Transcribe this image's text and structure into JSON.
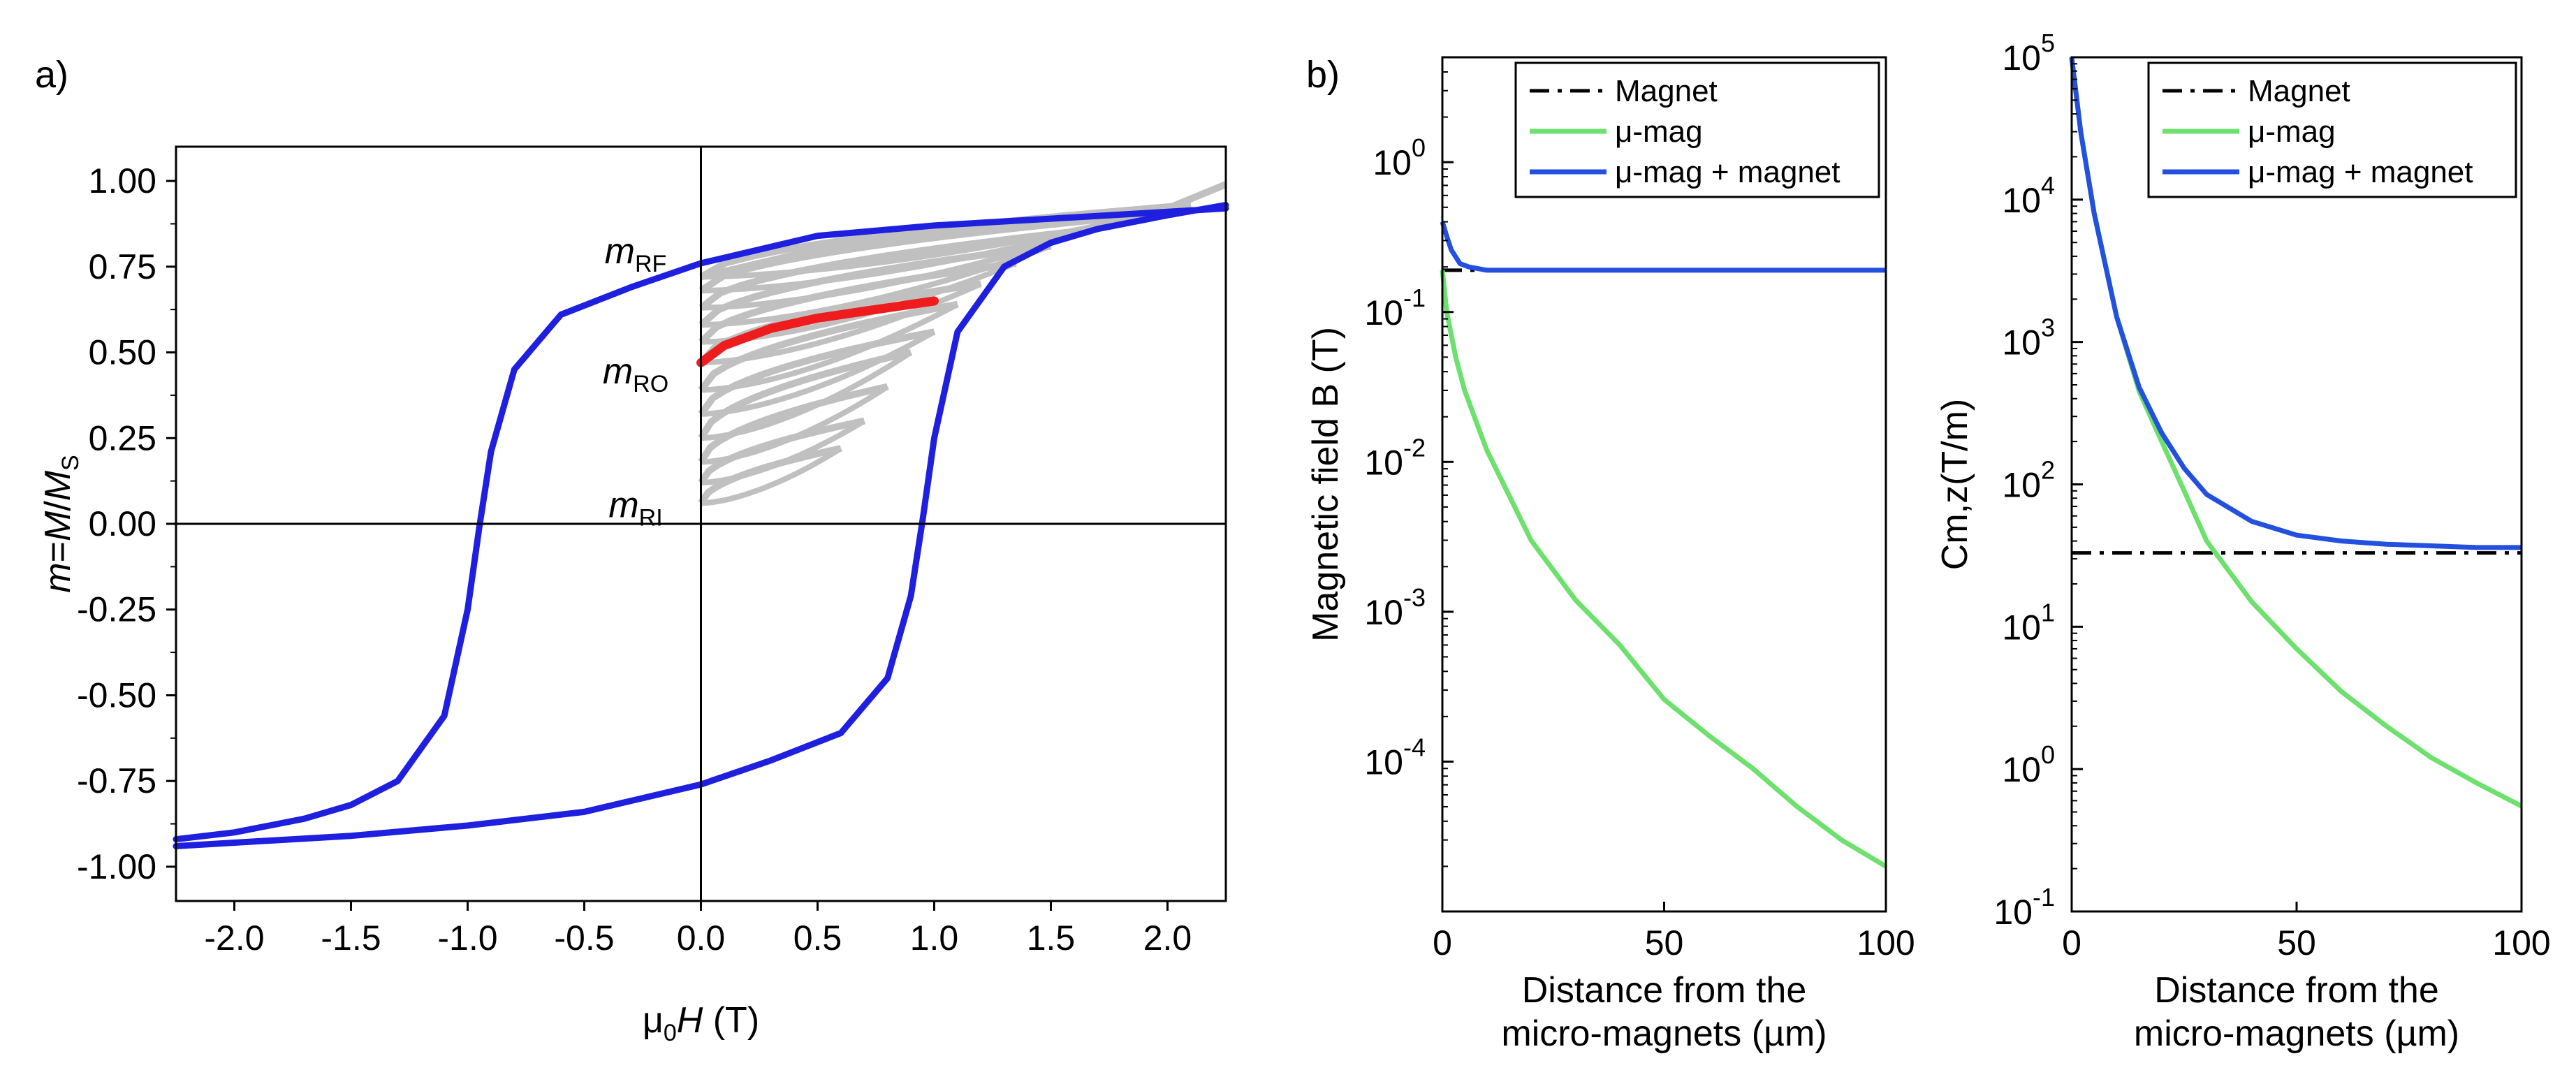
{
  "figure": {
    "panel_a_label": "a)",
    "panel_b_label": "b)"
  },
  "chart_data": [
    {
      "id": "a",
      "type": "line",
      "title": "",
      "xlabel": "μ₀H (T)",
      "xlabel_parts": {
        "mu": "μ",
        "sub": "0",
        "var": "H",
        "unit": " (T)"
      },
      "ylabel": "m=M/Ms",
      "ylabel_parts": {
        "m": "m",
        "eq": "=",
        "M": "M",
        "slash": "/",
        "Ms": "M",
        "sub": "S"
      },
      "xlim": [
        -2.25,
        2.25
      ],
      "ylim": [
        -1.1,
        1.1
      ],
      "xticks": [
        -2.0,
        -1.5,
        -1.0,
        -0.5,
        0.0,
        0.5,
        1.0,
        1.5,
        2.0
      ],
      "xtick_labels": [
        "-2.0",
        "-1.5",
        "-1.0",
        "-0.5",
        "0.0",
        "0.5",
        "1.0",
        "1.5",
        "2.0"
      ],
      "yticks": [
        -1.0,
        -0.75,
        -0.5,
        -0.25,
        0.0,
        0.25,
        0.5,
        0.75,
        1.0
      ],
      "ytick_labels": [
        "-1.00",
        "-0.75",
        "-0.50",
        "-0.25",
        "0.00",
        "0.25",
        "0.50",
        "0.75",
        "1.00"
      ],
      "colors": {
        "loop": "#1f1fe0",
        "minor": "#c0c0c0",
        "highlight": "#ee1c1c",
        "axis": "#000000"
      },
      "series": [
        {
          "name": "major loop descending",
          "color": "#1f1fe0",
          "x": [
            2.25,
            2.0,
            1.5,
            1.0,
            0.5,
            0.0,
            -0.3,
            -0.6,
            -0.8,
            -0.9,
            -0.95,
            -1.0,
            -1.1,
            -1.3,
            -1.5,
            -1.7,
            -2.0,
            -2.25
          ],
          "y": [
            0.92,
            0.91,
            0.89,
            0.87,
            0.84,
            0.76,
            0.69,
            0.61,
            0.45,
            0.21,
            -0.01,
            -0.25,
            -0.56,
            -0.75,
            -0.82,
            -0.86,
            -0.9,
            -0.92
          ]
        },
        {
          "name": "major loop ascending",
          "color": "#1f1fe0",
          "x": [
            -2.25,
            -2.0,
            -1.5,
            -1.0,
            -0.5,
            0.0,
            0.3,
            0.6,
            0.8,
            0.9,
            0.95,
            1.0,
            1.1,
            1.3,
            1.5,
            1.7,
            2.0,
            2.25
          ],
          "y": [
            -0.94,
            -0.93,
            -0.91,
            -0.88,
            -0.84,
            -0.76,
            -0.69,
            -0.61,
            -0.45,
            -0.21,
            0.01,
            0.25,
            0.56,
            0.75,
            0.82,
            0.86,
            0.9,
            0.93
          ]
        },
        {
          "name": "recoil curve (highlighted)",
          "color": "#ee1c1c",
          "x": [
            0.0,
            0.1,
            0.3,
            0.5,
            0.7,
            0.9,
            1.0
          ],
          "y": [
            0.47,
            0.52,
            0.57,
            0.6,
            0.62,
            0.64,
            0.65
          ]
        }
      ],
      "minor_loops": {
        "name": "recoil curves",
        "color": "#c0c0c0",
        "start_fields": [
          0.6,
          0.7,
          0.8,
          0.9,
          1.0,
          1.1,
          1.2,
          1.35,
          1.5,
          1.7,
          1.9,
          2.1
        ],
        "start_levels": [
          0.22,
          0.3,
          0.4,
          0.5,
          0.56,
          0.64,
          0.7,
          0.76,
          0.81,
          0.86,
          0.9,
          0.93
        ],
        "remanence_levels": [
          0.06,
          0.12,
          0.18,
          0.25,
          0.32,
          0.39,
          0.47,
          0.53,
          0.58,
          0.63,
          0.68,
          0.72
        ]
      },
      "annotations": [
        {
          "label": "m",
          "sub": "RF",
          "x": -0.28,
          "y": 0.78
        },
        {
          "label": "m",
          "sub": "RO",
          "x": -0.28,
          "y": 0.43
        },
        {
          "label": "m",
          "sub": "RI",
          "x": -0.28,
          "y": 0.04
        }
      ]
    },
    {
      "id": "b1",
      "type": "line",
      "yscale": "log",
      "title": "",
      "xlabel_lines": [
        "Distance from the",
        "micro-magnets (µm)"
      ],
      "ylabel": "Magnetic field B (T)",
      "xlim": [
        0,
        100
      ],
      "ylim_exp": [
        -5,
        0.7
      ],
      "xticks": [
        0,
        50,
        100
      ],
      "xtick_labels": [
        "0",
        "50",
        "100"
      ],
      "ytick_exps": [
        0,
        -1,
        -2,
        -3,
        -4
      ],
      "ytick_labels": [
        "10",
        "10",
        "10",
        "10",
        "10"
      ],
      "ytick_sups": [
        "0",
        "-1",
        "-2",
        "-3",
        "-4"
      ],
      "legend": {
        "placement": "top-right",
        "entries": [
          "Magnet",
          "μ-mag",
          "μ-mag + magnet"
        ]
      },
      "series": [
        {
          "name": "Magnet",
          "color": "#000000",
          "dash": "dashdot",
          "x": [
            0,
            100
          ],
          "y": [
            0.19,
            0.19
          ]
        },
        {
          "name": "μ-mag",
          "color": "#6de06d",
          "x": [
            0,
            1,
            3,
            5,
            10,
            15,
            20,
            30,
            40,
            50,
            60,
            70,
            80,
            90,
            100
          ],
          "y": [
            0.19,
            0.1,
            0.05,
            0.03,
            0.012,
            0.006,
            0.003,
            0.0012,
            0.0006,
            0.00026,
            0.00015,
            9e-05,
            5e-05,
            3e-05,
            2e-05
          ]
        },
        {
          "name": "μ-mag + magnet",
          "color": "#2450e0",
          "x": [
            0,
            1,
            2,
            4,
            6,
            10,
            20,
            50,
            100
          ],
          "y": [
            0.4,
            0.32,
            0.26,
            0.21,
            0.2,
            0.19,
            0.19,
            0.19,
            0.19
          ]
        }
      ]
    },
    {
      "id": "b2",
      "type": "line",
      "yscale": "log",
      "title": "",
      "xlabel_lines": [
        "Distance from the",
        "micro-magnets (µm)"
      ],
      "ylabel": "Cm,z(T/m)",
      "xlim": [
        0,
        100
      ],
      "ylim_exp": [
        -1,
        5
      ],
      "xticks": [
        0,
        50,
        100
      ],
      "xtick_labels": [
        "0",
        "50",
        "100"
      ],
      "ytick_exps": [
        5,
        4,
        3,
        2,
        1,
        0,
        -1
      ],
      "ytick_labels": [
        "10",
        "10",
        "10",
        "10",
        "10",
        "10",
        "10"
      ],
      "ytick_sups": [
        "5",
        "4",
        "3",
        "2",
        "1",
        "0",
        "-1"
      ],
      "legend": {
        "placement": "top-right",
        "entries": [
          "Magnet",
          "μ-mag",
          "μ-mag + magnet"
        ]
      },
      "series": [
        {
          "name": "Magnet",
          "color": "#000000",
          "dash": "dashdot",
          "x": [
            0,
            100
          ],
          "y": [
            33,
            33
          ]
        },
        {
          "name": "μ-mag",
          "color": "#6de06d",
          "x": [
            0,
            2,
            5,
            10,
            15,
            20,
            25,
            30,
            40,
            50,
            60,
            70,
            80,
            90,
            100
          ],
          "y": [
            100000,
            30000,
            8000,
            1500,
            450,
            200,
            90,
            40,
            15,
            7,
            3.5,
            2,
            1.2,
            0.8,
            0.55
          ]
        },
        {
          "name": "μ-mag + magnet",
          "color": "#2450e0",
          "x": [
            0,
            2,
            5,
            10,
            15,
            20,
            25,
            30,
            40,
            50,
            60,
            70,
            80,
            90,
            100
          ],
          "y": [
            100000,
            30000,
            8000,
            1500,
            480,
            230,
            130,
            85,
            55,
            44,
            40,
            38,
            37,
            36,
            36
          ]
        }
      ]
    }
  ]
}
